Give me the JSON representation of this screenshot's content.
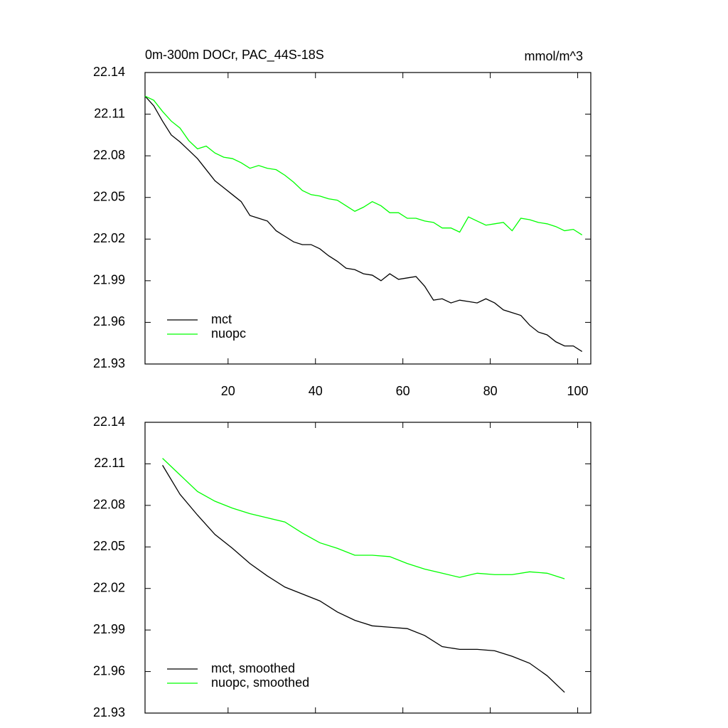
{
  "chart_data": [
    {
      "type": "line",
      "title": "0m-300m DOCr, PAC_44S-18S",
      "units": "mmol/m^3",
      "xlim": [
        1,
        103
      ],
      "xticks": [
        20,
        40,
        60,
        80,
        100
      ],
      "show_xtick_labels": true,
      "ylim": [
        21.93,
        22.14
      ],
      "yticks": [
        21.93,
        21.96,
        21.99,
        22.02,
        22.05,
        22.08,
        22.11,
        22.14
      ],
      "legend": "lower left",
      "x": [
        1,
        3,
        5,
        7,
        9,
        11,
        13,
        15,
        17,
        19,
        21,
        23,
        25,
        27,
        29,
        31,
        33,
        35,
        37,
        39,
        41,
        43,
        45,
        47,
        49,
        51,
        53,
        55,
        57,
        59,
        61,
        63,
        65,
        67,
        69,
        71,
        73,
        75,
        77,
        79,
        81,
        83,
        85,
        87,
        89,
        91,
        93,
        95,
        97,
        99,
        101
      ],
      "series": [
        {
          "name": "mct",
          "color": "#000000",
          "values": [
            22.123,
            22.116,
            22.105,
            22.095,
            22.09,
            22.084,
            22.078,
            22.07,
            22.062,
            22.057,
            22.052,
            22.047,
            22.037,
            22.035,
            22.033,
            22.026,
            22.022,
            22.018,
            22.016,
            22.016,
            22.013,
            22.008,
            22.004,
            21.999,
            21.998,
            21.995,
            21.994,
            21.99,
            21.995,
            21.991,
            21.992,
            21.993,
            21.986,
            21.976,
            21.977,
            21.974,
            21.976,
            21.975,
            21.974,
            21.977,
            21.974,
            21.969,
            21.967,
            21.965,
            21.958,
            21.953,
            21.951,
            21.946,
            21.943,
            21.943,
            21.939
          ]
        },
        {
          "name": "nuopc",
          "color": "#00ff00",
          "values": [
            22.123,
            22.12,
            22.112,
            22.105,
            22.1,
            22.091,
            22.085,
            22.087,
            22.082,
            22.079,
            22.078,
            22.075,
            22.071,
            22.073,
            22.071,
            22.07,
            22.066,
            22.061,
            22.055,
            22.052,
            22.051,
            22.049,
            22.048,
            22.044,
            22.04,
            22.043,
            22.047,
            22.044,
            22.039,
            22.039,
            22.035,
            22.035,
            22.033,
            22.032,
            22.028,
            22.028,
            22.025,
            22.036,
            22.033,
            22.03,
            22.031,
            22.032,
            22.026,
            22.035,
            22.034,
            22.032,
            22.031,
            22.029,
            22.026,
            22.027,
            22.023
          ]
        }
      ]
    },
    {
      "type": "line",
      "xlim": [
        1,
        103
      ],
      "xticks": [
        20,
        40,
        60,
        80,
        100
      ],
      "show_xtick_labels": false,
      "ylim": [
        21.93,
        22.14
      ],
      "yticks": [
        21.93,
        21.96,
        21.99,
        22.02,
        22.05,
        22.08,
        22.11,
        22.14
      ],
      "legend": "lower left",
      "x": [
        5,
        9,
        13,
        17,
        21,
        25,
        29,
        33,
        37,
        41,
        45,
        49,
        53,
        57,
        61,
        65,
        69,
        73,
        77,
        81,
        85,
        89,
        93,
        97
      ],
      "series": [
        {
          "name": "mct, smoothed",
          "color": "#000000",
          "values": [
            22.109,
            22.088,
            22.073,
            22.059,
            22.049,
            22.038,
            22.029,
            22.021,
            22.016,
            22.011,
            22.003,
            21.997,
            21.993,
            21.992,
            21.991,
            21.986,
            21.978,
            21.976,
            21.976,
            21.975,
            21.971,
            21.966,
            21.957,
            21.945
          ]
        },
        {
          "name": "nuopc, smoothed",
          "color": "#00ff00",
          "values": [
            22.114,
            22.102,
            22.09,
            22.083,
            22.078,
            22.074,
            22.071,
            22.068,
            22.06,
            22.053,
            22.049,
            22.044,
            22.044,
            22.043,
            22.038,
            22.034,
            22.031,
            22.028,
            22.031,
            22.03,
            22.03,
            22.032,
            22.031,
            22.027
          ]
        }
      ]
    }
  ]
}
